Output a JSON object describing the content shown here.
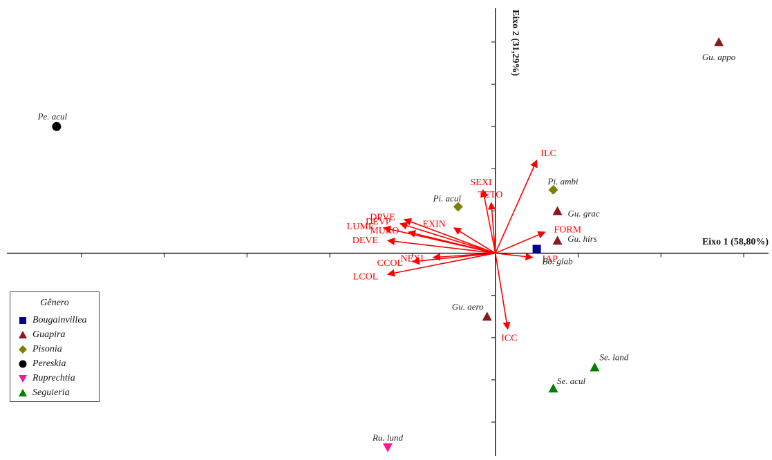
{
  "chart_data": {
    "type": "scatter",
    "title": "",
    "xlabel": "Eixo 1 (58,80%)",
    "ylabel": "Eixo 2 (31,29%)",
    "xlim": [
      -1.18,
      0.66
    ],
    "ylim": [
      -0.48,
      0.58
    ],
    "grid": false,
    "legend_position": "bottom-left",
    "legend_title": "Gênero",
    "series": [
      {
        "name": "Bougainvillea",
        "marker": "square",
        "color": "#00008b",
        "points": [
          {
            "label": "Bo. glab",
            "x": 0.1,
            "y": 0.01
          }
        ]
      },
      {
        "name": "Guapira",
        "marker": "triangle-up",
        "color": "#8b1a1a",
        "points": [
          {
            "label": "Gu. appo",
            "x": 0.54,
            "y": 0.5
          },
          {
            "label": "Gu. grac",
            "x": 0.15,
            "y": 0.1
          },
          {
            "label": "Gu. hirs",
            "x": 0.15,
            "y": 0.03
          },
          {
            "label": "Gu. aero",
            "x": -0.02,
            "y": -0.15
          }
        ]
      },
      {
        "name": "Pisonia",
        "marker": "diamond",
        "color": "#7f7f00",
        "points": [
          {
            "label": "Pi. ambi",
            "x": 0.14,
            "y": 0.15
          },
          {
            "label": "Pi. acul",
            "x": -0.09,
            "y": 0.11
          }
        ]
      },
      {
        "name": "Pereskia",
        "marker": "circle",
        "color": "#000000",
        "points": [
          {
            "label": "Pe. acul",
            "x": -1.06,
            "y": 0.3
          }
        ]
      },
      {
        "name": "Ruprechtia",
        "marker": "triangle-down",
        "color": "#ff1493",
        "points": [
          {
            "label": "Ru. lund",
            "x": -0.26,
            "y": -0.46
          }
        ]
      },
      {
        "name": "Seguieria",
        "marker": "triangle-up",
        "color": "#008000",
        "points": [
          {
            "label": "Se. land",
            "x": 0.24,
            "y": -0.27
          },
          {
            "label": "Se. acul",
            "x": 0.14,
            "y": -0.32
          }
        ]
      }
    ],
    "vectors_color": "#ff0000",
    "vectors": [
      {
        "label": "ILC",
        "x": 0.1,
        "y": 0.22
      },
      {
        "label": "SEXI",
        "x": -0.03,
        "y": 0.15
      },
      {
        "label": "TETO",
        "x": -0.01,
        "y": 0.12
      },
      {
        "label": "FORM",
        "x": 0.12,
        "y": 0.05
      },
      {
        "label": "EXIN",
        "x": -0.1,
        "y": 0.06
      },
      {
        "label": "DPVE",
        "x": -0.22,
        "y": 0.08
      },
      {
        "label": "DEVP",
        "x": -0.23,
        "y": 0.07
      },
      {
        "label": "LUME",
        "x": -0.27,
        "y": 0.06
      },
      {
        "label": "MURO",
        "x": -0.21,
        "y": 0.05
      },
      {
        "label": "DEVE",
        "x": -0.26,
        "y": 0.03
      },
      {
        "label": "NEXI",
        "x": -0.15,
        "y": -0.01
      },
      {
        "label": "CCOL",
        "x": -0.2,
        "y": -0.02
      },
      {
        "label": "LCOL",
        "x": -0.26,
        "y": -0.05
      },
      {
        "label": "IAP",
        "x": 0.09,
        "y": -0.01
      },
      {
        "label": "ICC",
        "x": 0.03,
        "y": -0.18
      }
    ]
  }
}
